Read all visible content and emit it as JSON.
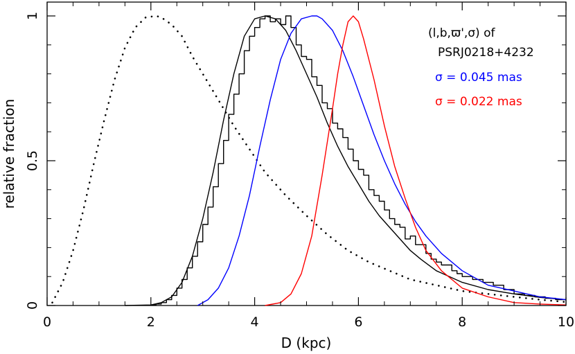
{
  "chart_data": {
    "type": "line",
    "xlabel": "D (kpc)",
    "ylabel": "relative fraction",
    "xlim": [
      0,
      10
    ],
    "ylim": [
      0,
      1
    ],
    "x_ticks": [
      0,
      2,
      4,
      6,
      8,
      10
    ],
    "x_tick_labels": [
      "0",
      "2",
      "4",
      "6",
      "8",
      "10"
    ],
    "y_ticks": [
      0,
      0.5,
      1
    ],
    "y_tick_labels": [
      "0",
      "0.5",
      "1"
    ],
    "annotations": [
      {
        "text": "(l,b,ϖ',σ)  of",
        "color": "#000000"
      },
      {
        "text": "PSRJ0218+4232",
        "color": "#000000"
      },
      {
        "text": "σ = 0.045 mas",
        "color": "#0000ff"
      },
      {
        "text": "σ = 0.022 mas",
        "color": "#ff0000"
      }
    ],
    "series": [
      {
        "style": "dotted",
        "color": "#000000",
        "x": [
          0.1,
          0.3,
          0.5,
          0.7,
          0.9,
          1.1,
          1.3,
          1.5,
          1.7,
          1.9,
          2.1,
          2.2,
          2.4,
          2.6,
          2.8,
          3.0,
          3.3,
          3.6,
          3.9,
          4.2,
          4.6,
          5.0,
          5.4,
          5.8,
          6.2,
          6.6,
          7.0,
          7.5,
          8.0,
          8.5,
          9.0,
          9.5,
          10.0
        ],
        "y": [
          0.01,
          0.08,
          0.19,
          0.33,
          0.49,
          0.64,
          0.78,
          0.89,
          0.96,
          0.995,
          1.0,
          0.995,
          0.97,
          0.93,
          0.86,
          0.8,
          0.71,
          0.62,
          0.54,
          0.46,
          0.38,
          0.31,
          0.245,
          0.19,
          0.15,
          0.12,
          0.09,
          0.07,
          0.05,
          0.04,
          0.03,
          0.02,
          0.012
        ]
      },
      {
        "style": "solid",
        "color": "#000000",
        "x": [
          1.5,
          2.0,
          2.2,
          2.4,
          2.6,
          2.8,
          3.0,
          3.2,
          3.4,
          3.6,
          3.8,
          4.0,
          4.2,
          4.4,
          4.6,
          4.8,
          5.0,
          5.2,
          5.4,
          5.6,
          5.8,
          6.0,
          6.2,
          6.4,
          6.6,
          6.8,
          7.0,
          7.2,
          7.5,
          8.0,
          8.5,
          9.0,
          9.5,
          10.0
        ],
        "y": [
          0.0,
          0.002,
          0.01,
          0.03,
          0.08,
          0.17,
          0.3,
          0.46,
          0.64,
          0.8,
          0.93,
          0.99,
          1.0,
          0.99,
          0.95,
          0.88,
          0.8,
          0.72,
          0.63,
          0.55,
          0.48,
          0.42,
          0.36,
          0.31,
          0.27,
          0.23,
          0.19,
          0.16,
          0.12,
          0.08,
          0.055,
          0.04,
          0.028,
          0.02
        ]
      },
      {
        "style": "histogram",
        "color": "#000000",
        "x": [
          2.0,
          2.1,
          2.2,
          2.3,
          2.4,
          2.5,
          2.6,
          2.7,
          2.8,
          2.9,
          3.0,
          3.1,
          3.2,
          3.3,
          3.4,
          3.5,
          3.6,
          3.7,
          3.8,
          3.9,
          4.0,
          4.1,
          4.2,
          4.3,
          4.4,
          4.5,
          4.6,
          4.7,
          4.8,
          4.9,
          5.0,
          5.1,
          5.2,
          5.3,
          5.4,
          5.5,
          5.6,
          5.7,
          5.8,
          5.9,
          6.0,
          6.1,
          6.2,
          6.3,
          6.4,
          6.5,
          6.6,
          6.7,
          6.8,
          6.9,
          7.0,
          7.1,
          7.2,
          7.3,
          7.4,
          7.5,
          7.6,
          7.7,
          7.8,
          7.9,
          8.0,
          8.2,
          8.4,
          8.6,
          8.8,
          9.0,
          9.2,
          9.4,
          9.6,
          9.8
        ],
        "y": [
          0.002,
          0.005,
          0.01,
          0.02,
          0.035,
          0.06,
          0.09,
          0.13,
          0.17,
          0.22,
          0.28,
          0.34,
          0.41,
          0.49,
          0.57,
          0.66,
          0.73,
          0.8,
          0.88,
          0.93,
          0.96,
          0.99,
          1.0,
          0.98,
          0.99,
          0.97,
          1.0,
          0.96,
          0.9,
          0.86,
          0.85,
          0.79,
          0.76,
          0.7,
          0.68,
          0.63,
          0.61,
          0.58,
          0.54,
          0.5,
          0.47,
          0.45,
          0.4,
          0.38,
          0.36,
          0.33,
          0.3,
          0.28,
          0.27,
          0.23,
          0.24,
          0.21,
          0.21,
          0.18,
          0.16,
          0.15,
          0.14,
          0.14,
          0.12,
          0.11,
          0.1,
          0.09,
          0.08,
          0.07,
          0.055,
          0.04,
          0.035,
          0.03,
          0.025,
          0.02
        ]
      },
      {
        "style": "solid",
        "color": "#0000ff",
        "x": [
          2.9,
          3.1,
          3.3,
          3.5,
          3.7,
          3.9,
          4.1,
          4.3,
          4.5,
          4.7,
          4.9,
          5.1,
          5.2,
          5.3,
          5.5,
          5.7,
          5.9,
          6.1,
          6.3,
          6.5,
          6.7,
          6.9,
          7.1,
          7.3,
          7.6,
          8.0,
          8.5,
          9.0,
          9.5,
          10.0
        ],
        "y": [
          0.0,
          0.02,
          0.06,
          0.13,
          0.24,
          0.38,
          0.55,
          0.71,
          0.85,
          0.94,
          0.99,
          1.0,
          1.0,
          0.99,
          0.95,
          0.88,
          0.79,
          0.69,
          0.59,
          0.5,
          0.42,
          0.35,
          0.29,
          0.24,
          0.18,
          0.12,
          0.07,
          0.05,
          0.03,
          0.02
        ]
      },
      {
        "style": "solid",
        "color": "#ff0000",
        "x": [
          4.2,
          4.5,
          4.7,
          4.9,
          5.1,
          5.3,
          5.5,
          5.6,
          5.7,
          5.8,
          5.9,
          6.0,
          6.1,
          6.3,
          6.5,
          6.7,
          6.9,
          7.1,
          7.3,
          7.6,
          8.0,
          8.5,
          9.0,
          9.5,
          10.0
        ],
        "y": [
          0.0,
          0.01,
          0.04,
          0.11,
          0.24,
          0.45,
          0.68,
          0.8,
          0.9,
          0.98,
          1.0,
          0.98,
          0.92,
          0.78,
          0.62,
          0.48,
          0.37,
          0.27,
          0.19,
          0.12,
          0.06,
          0.03,
          0.01,
          0.005,
          0.002
        ]
      }
    ]
  }
}
